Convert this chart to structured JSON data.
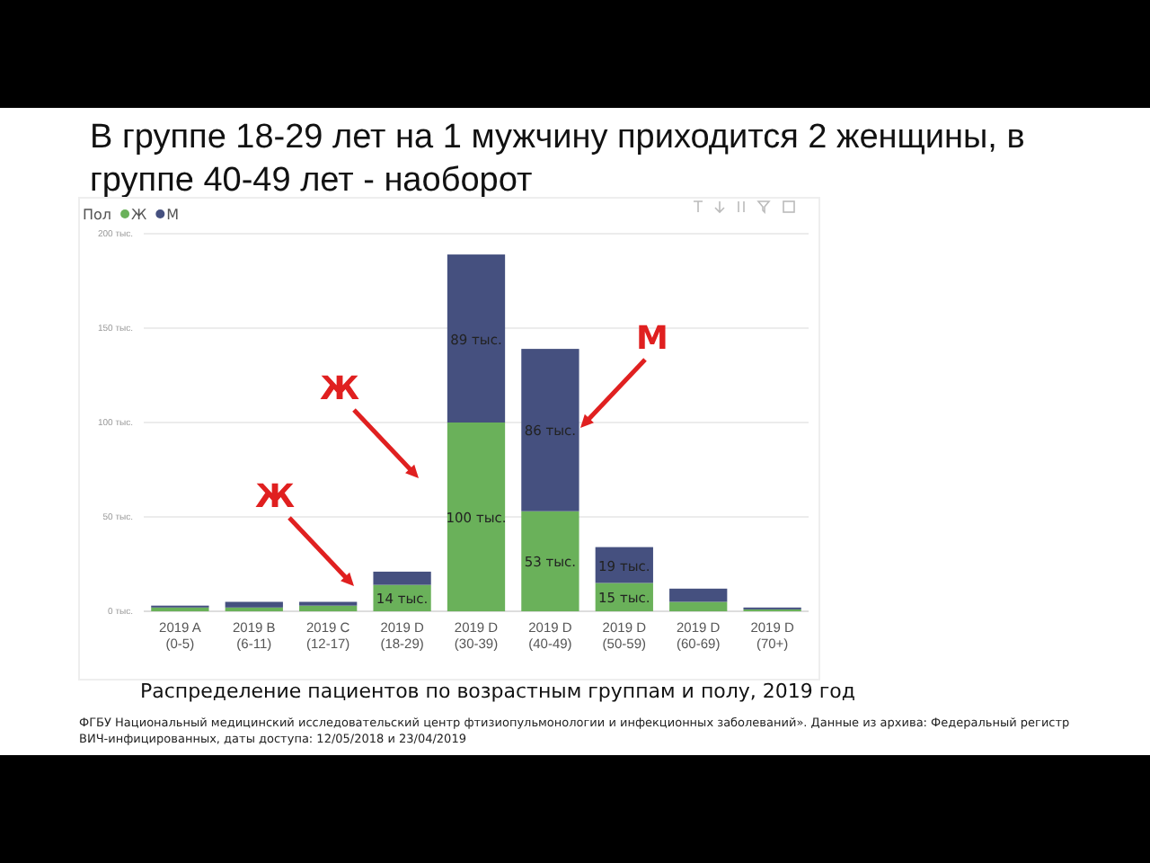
{
  "chart_data": {
    "type": "bar",
    "stacked": true,
    "title": "В группе 18-29 лет на 1 мужчину приходится 2 женщины, в группе 40-49 лет - наоборот",
    "legend_title": "Пол",
    "legend": "top left",
    "grid": "y",
    "categories": [
      "2019 A (0-5)",
      "2019 B (6-11)",
      "2019 C (12-17)",
      "2019 D (18-29)",
      "2019 D (30-39)",
      "2019 D (40-49)",
      "2019 D (50-59)",
      "2019 D (60-69)",
      "2019 D (70+)"
    ],
    "series": [
      {
        "name": "Ж",
        "color": "#6ab15a",
        "values": [
          2,
          2,
          3,
          14,
          100,
          53,
          15,
          5,
          1
        ],
        "value_labels": [
          null,
          null,
          null,
          "14 тыс.",
          "100 тыс.",
          "53 тыс.",
          "15 тыс.",
          null,
          null
        ]
      },
      {
        "name": "М",
        "color": "#45507f",
        "values": [
          1,
          3,
          2,
          7,
          89,
          86,
          19,
          7,
          1
        ],
        "value_labels": [
          null,
          null,
          null,
          null,
          "89 тыс.",
          "86 тыс.",
          "19 тыс.",
          null,
          null
        ]
      }
    ],
    "ylim": [
      0,
      200
    ],
    "yticks": [
      {
        "value": 0,
        "label": "0 тыс."
      },
      {
        "value": 50,
        "label": "50 тыс."
      },
      {
        "value": 100,
        "label": "100 тыс."
      },
      {
        "value": 150,
        "label": "150 тыс."
      },
      {
        "value": 200,
        "label": "200 тыс."
      }
    ],
    "annotations": [
      "Ж",
      "Ж",
      "М",
      "Распределение пациентов по возрастным группам и полу, 2019 год",
      "ФГБУ Национальный медицинский исследовательский центр фтизиопульмонологии и инфекционных заболеваний». Данные из архива: Федеральный регистр ВИЧ-инфицированных, даты доступа: 12/05/2018 и 23/04/2019"
    ]
  }
}
